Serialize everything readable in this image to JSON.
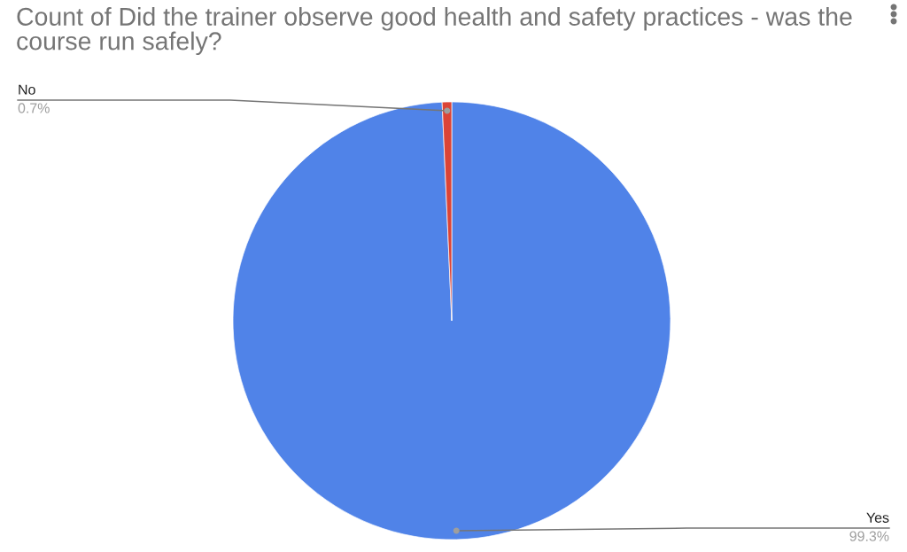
{
  "chart_data": {
    "type": "pie",
    "title": "Count of Did the trainer observe good health and safety practices - was the course run safely?",
    "categories": [
      "Yes",
      "No"
    ],
    "values": [
      99.3,
      0.7
    ],
    "colors": [
      "#5083e8",
      "#db4437"
    ],
    "value_labels": [
      "99.3%",
      "0.7%"
    ]
  }
}
